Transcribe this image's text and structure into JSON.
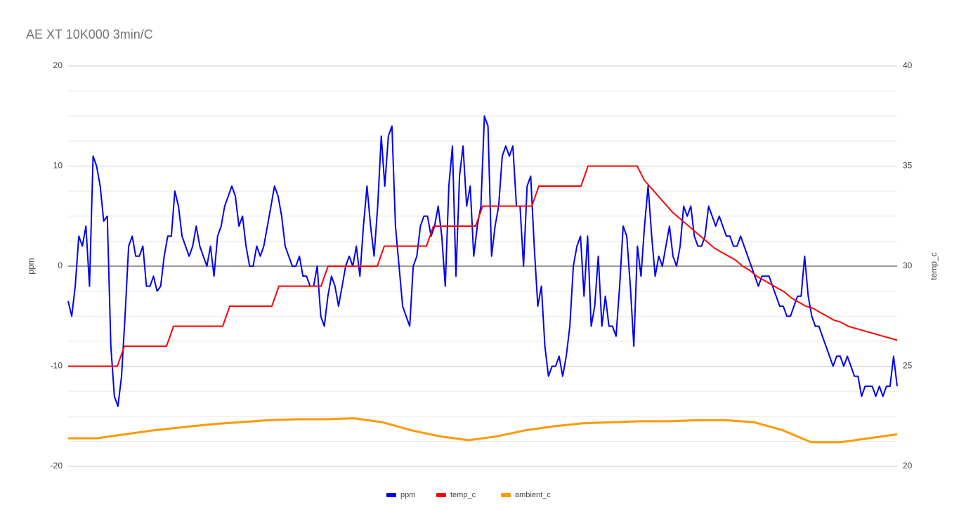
{
  "chart_data": {
    "type": "line",
    "title": "AE XT 10K000 3min/C",
    "y_label": "ppm",
    "y2_label": "temp_c",
    "ylim": [
      -20,
      20
    ],
    "yticks": [
      -20,
      -10,
      0,
      10,
      20
    ],
    "minor_yticks": [
      -17.5,
      -15,
      -12.5,
      -7.5,
      -5,
      -2.5,
      2.5,
      5,
      7.5,
      12.5,
      15,
      17.5
    ],
    "y2lim": [
      20,
      40
    ],
    "y2ticks": [
      20,
      25,
      30,
      35,
      40
    ],
    "grid": true,
    "legend": "bottom",
    "series": [
      {
        "name": "ppm",
        "color": "#0000ee",
        "values": [
          -3.5,
          -5,
          -2,
          3,
          2,
          4,
          -2,
          11,
          10,
          8,
          4.5,
          5,
          -8,
          -13,
          -14,
          -11,
          -5,
          2,
          3,
          1,
          1,
          2,
          -2,
          -2,
          -1,
          -2.5,
          -2,
          1,
          3,
          3,
          7.5,
          6,
          3,
          2,
          1,
          2,
          4,
          2,
          1,
          0,
          2,
          -1,
          3,
          4,
          6,
          7,
          8,
          7,
          4,
          5,
          2,
          0,
          0,
          2,
          1,
          2,
          4,
          6,
          8,
          7,
          5,
          2,
          1,
          0,
          0,
          1,
          -1,
          -1,
          -2,
          -2,
          0,
          -5,
          -6,
          -3,
          -1,
          -2,
          -4,
          -2,
          0,
          1,
          0,
          2,
          -1,
          4,
          8,
          4,
          1,
          6,
          13,
          8,
          13,
          14,
          4,
          0,
          -4,
          -5,
          -6,
          0,
          1,
          4,
          5,
          5,
          3,
          4,
          6,
          3,
          -2,
          8,
          12,
          -1,
          9,
          12,
          6,
          8,
          1,
          4,
          6,
          15,
          14,
          1,
          4,
          6,
          11,
          12,
          11,
          12,
          6,
          6,
          0,
          8,
          9,
          2,
          -4,
          -2,
          -8,
          -11,
          -10,
          -10,
          -9,
          -11,
          -9,
          -6,
          0,
          2,
          3,
          -3,
          3,
          -6,
          -4,
          1,
          -6,
          -3,
          -6,
          -6,
          -7,
          -2,
          4,
          3,
          -2,
          -8,
          2,
          -1,
          4,
          8,
          3,
          -1,
          1,
          0,
          2,
          4,
          1,
          0,
          2,
          6,
          5,
          6,
          3,
          2,
          2,
          3,
          6,
          5,
          4,
          5,
          4,
          3,
          3,
          2,
          2,
          3,
          2,
          1,
          0,
          -1,
          -2,
          -1,
          -1,
          -1,
          -2,
          -3,
          -4,
          -4,
          -5,
          -5,
          -4,
          -3,
          -3,
          1,
          -3,
          -5,
          -6,
          -6,
          -7,
          -8,
          -9,
          -10,
          -9,
          -9,
          -10,
          -9,
          -10,
          -11,
          -11,
          -13,
          -12,
          -12,
          -12,
          -13,
          -12,
          -13,
          -12,
          -12,
          -9,
          -12
        ]
      },
      {
        "name": "temp_c",
        "color": "#ff0000",
        "axis": "y2",
        "values": [
          25,
          25,
          25,
          25,
          25,
          25,
          25,
          25,
          26,
          26,
          26,
          26,
          26,
          26,
          26,
          27,
          27,
          27,
          27,
          27,
          27,
          27,
          27,
          28,
          28,
          28,
          28,
          28,
          28,
          28,
          29,
          29,
          29,
          29,
          29,
          29,
          29,
          30,
          30,
          30,
          30,
          30,
          30,
          30,
          30,
          31,
          31,
          31,
          31,
          31,
          31,
          31,
          32,
          32,
          32,
          32,
          32,
          32,
          32,
          33,
          33,
          33,
          33,
          33,
          33,
          33,
          33,
          34,
          34,
          34,
          34,
          34,
          34,
          34,
          35,
          35,
          35,
          35,
          35,
          35,
          35,
          35,
          34.3,
          33.9,
          33.5,
          33.1,
          32.7,
          32.4,
          32.1,
          31.8,
          31.5,
          31.2,
          30.9,
          30.7,
          30.5,
          30.3,
          30.0,
          29.8,
          29.5,
          29.3,
          29.1,
          28.9,
          28.7,
          28.4,
          28.2,
          28.0,
          27.9,
          27.7,
          27.5,
          27.3,
          27.2,
          27.0,
          26.9,
          26.8,
          26.7,
          26.6,
          26.5,
          26.4,
          26.3
        ]
      },
      {
        "name": "ambient_c",
        "color": "#ff9900",
        "axis": "y2",
        "values": [
          21.4,
          21.4,
          21.6,
          21.8,
          21.95,
          22.1,
          22.2,
          22.3,
          22.35,
          22.35,
          22.4,
          22.2,
          21.8,
          21.5,
          21.3,
          21.5,
          21.8,
          22.0,
          22.15,
          22.2,
          22.25,
          22.25,
          22.3,
          22.3,
          22.2,
          21.8,
          21.2,
          21.2,
          21.4,
          21.6
        ]
      }
    ]
  }
}
